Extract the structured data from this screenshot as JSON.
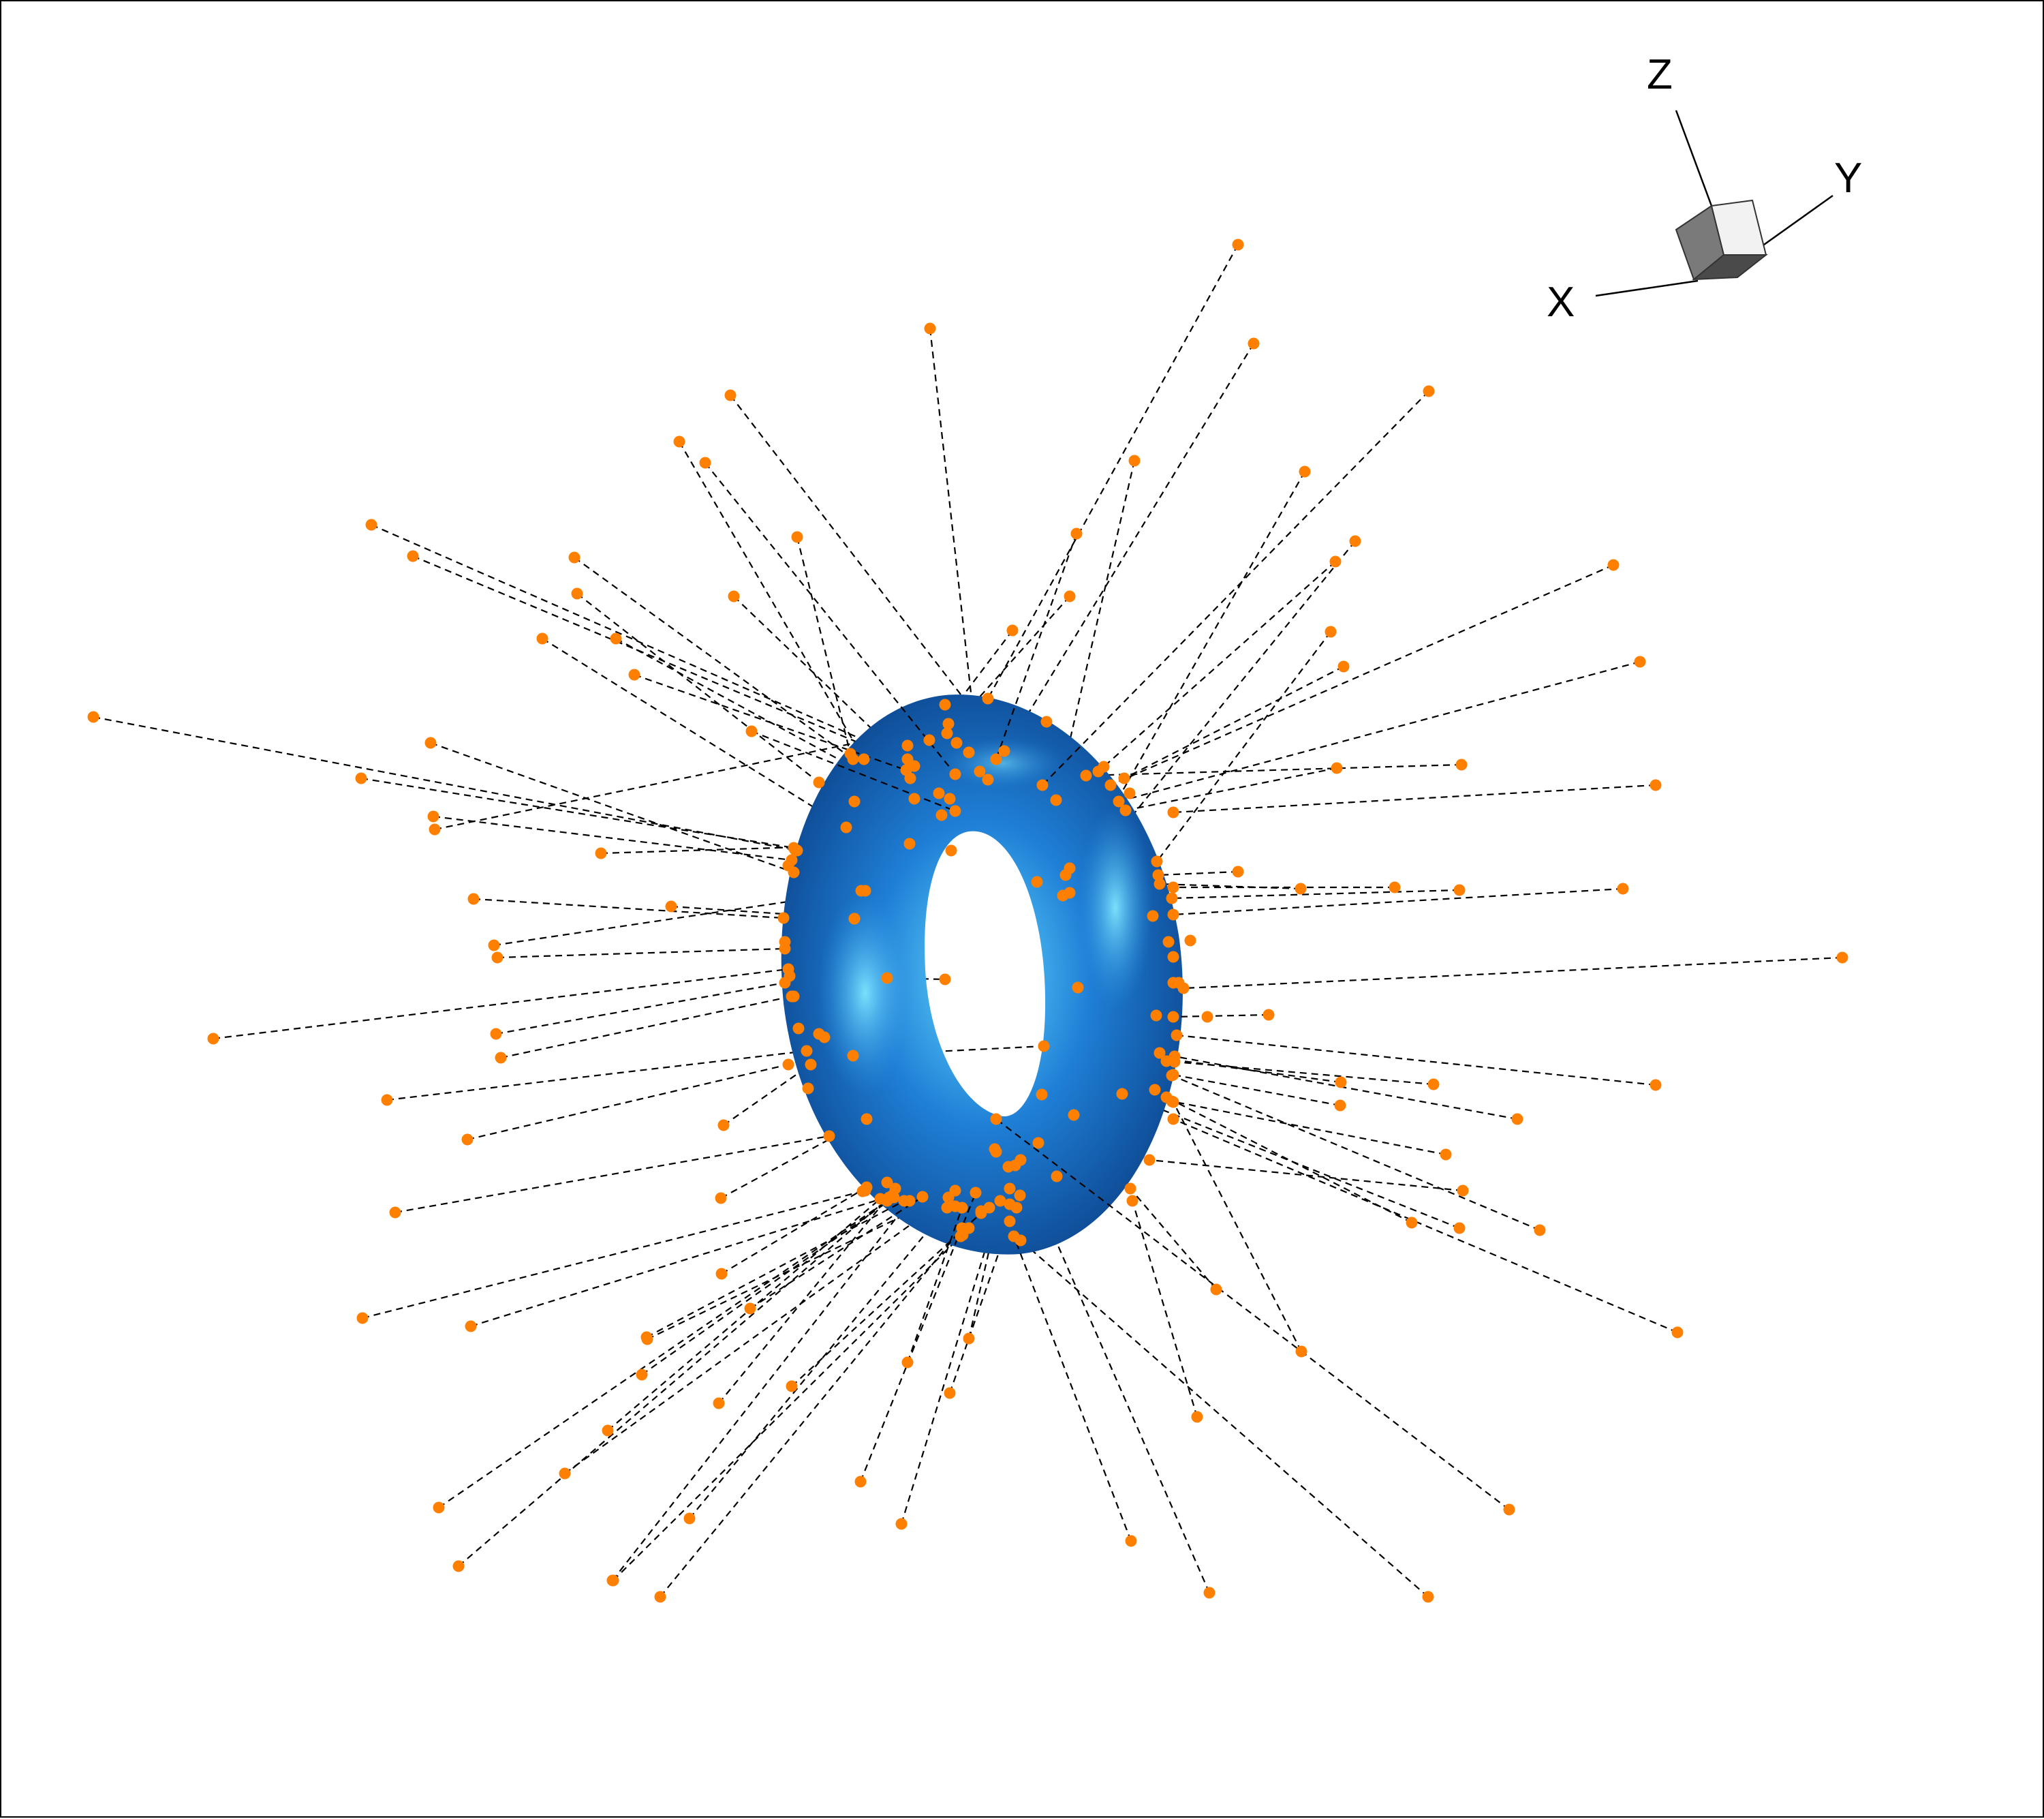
{
  "scene": {
    "background": "#ffffff",
    "torus_color": "#1f7fd6",
    "torus_highlight": "#5ed8ff",
    "torus_shadow": "#0a3f86",
    "point_color": "#ff8000",
    "line_style": "dashed",
    "line_color": "#000000"
  },
  "orientation_axes": {
    "labels": {
      "x": "X",
      "y": "Y",
      "z": "Z"
    },
    "cube_colors": {
      "top": "#f2f2f2",
      "left": "#7a7a7a",
      "front": "#4a4a4a"
    }
  }
}
